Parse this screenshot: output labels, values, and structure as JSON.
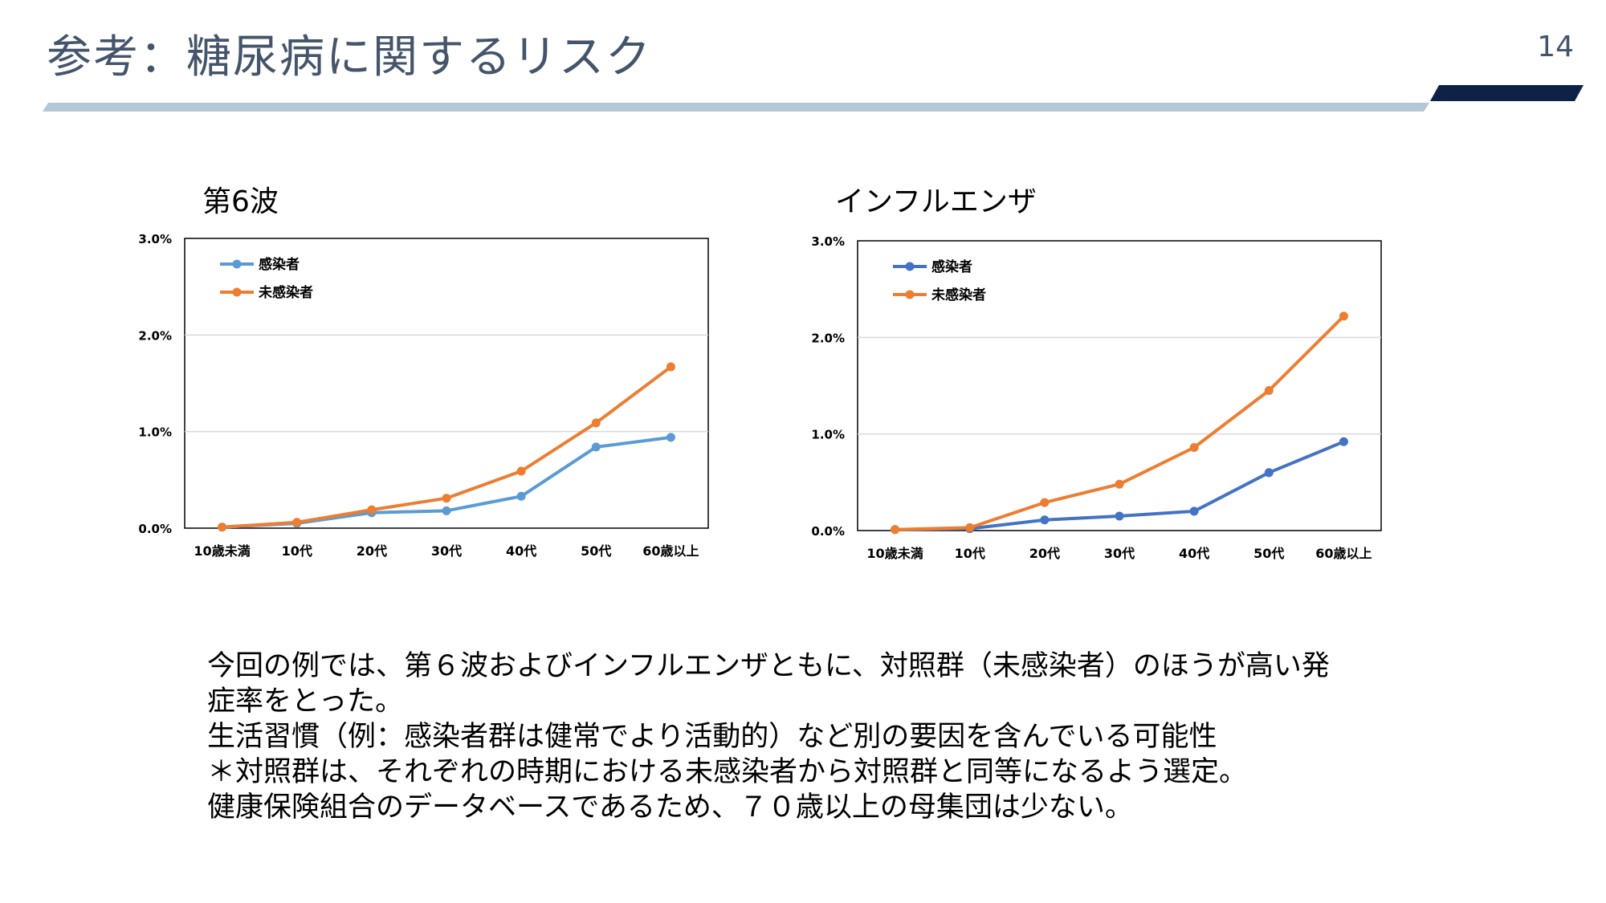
{
  "header": {
    "title": "参考：糖尿病に関するリスク",
    "page_number": "14"
  },
  "colors": {
    "title": "#44546a",
    "rule_light": "#b4c7d6",
    "rule_dark": "#0e2146",
    "series_blue_light": "#5b9bd5",
    "series_blue": "#4472c4",
    "series_orange": "#ed7d31",
    "grid": "#d9d9d9"
  },
  "chart_data": [
    {
      "type": "line",
      "title": "第6波",
      "categories": [
        "10歳未満",
        "10代",
        "20代",
        "30代",
        "40代",
        "50代",
        "60歳以上"
      ],
      "yticks": [
        "0.0%",
        "1.0%",
        "2.0%",
        "3.0%"
      ],
      "ylim": [
        0,
        3.0
      ],
      "grid": true,
      "legend": "top-left",
      "series": [
        {
          "name": "感染者",
          "values": [
            0.01,
            0.05,
            0.16,
            0.18,
            0.33,
            0.84,
            0.94
          ],
          "color": "#5b9bd5"
        },
        {
          "name": "未感染者",
          "values": [
            0.01,
            0.06,
            0.19,
            0.31,
            0.59,
            1.09,
            1.67
          ],
          "color": "#ed7d31"
        }
      ]
    },
    {
      "type": "line",
      "title": "インフルエンザ",
      "categories": [
        "10歳未満",
        "10代",
        "20代",
        "30代",
        "40代",
        "50代",
        "60歳以上"
      ],
      "yticks": [
        "0.0%",
        "1.0%",
        "2.0%",
        "3.0%"
      ],
      "ylim": [
        0,
        3.0
      ],
      "grid": true,
      "legend": "top-left",
      "series": [
        {
          "name": "感染者",
          "values": [
            0.01,
            0.02,
            0.11,
            0.15,
            0.2,
            0.6,
            0.92
          ],
          "color": "#4472c4"
        },
        {
          "name": "未感染者",
          "values": [
            0.01,
            0.03,
            0.29,
            0.48,
            0.86,
            1.45,
            2.22
          ],
          "color": "#ed7d31"
        }
      ]
    }
  ],
  "body": {
    "lines": [
      "今回の例では、第６波およびインフルエンザともに、対照群（未感染者）のほうが高い発",
      "症率をとった。",
      "生活習慣（例：感染者群は健常でより活動的）など別の要因を含んでいる可能性",
      "＊対照群は、それぞれの時期における未感染者から対照群と同等になるよう選定。",
      "健康保険組合のデータベースであるため、７０歳以上の母集団は少ない。"
    ]
  }
}
